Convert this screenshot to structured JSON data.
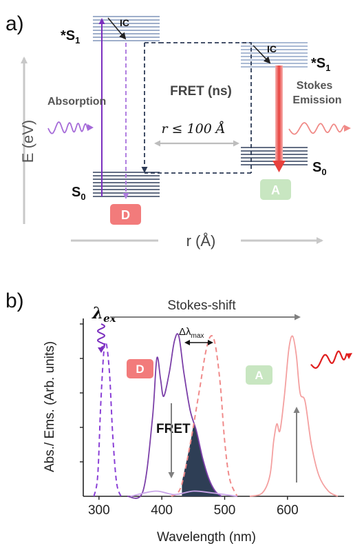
{
  "panel_a": {
    "label": "a)",
    "y_axis": "E (eV)",
    "x_axis": "r (Å)",
    "left_s1": "*S",
    "left_s1_sub": "1",
    "left_s0": "S",
    "left_s0_sub": "0",
    "right_s1": "*S",
    "right_s1_sub": "1",
    "right_s0": "S",
    "right_s0_sub": "0",
    "ic_left": "IC",
    "ic_right": "IC",
    "fret": "FRET (ns)",
    "distance": "r ≤ 100 Å",
    "absorption": "Absorption",
    "stokes_line1": "Stokes",
    "stokes_line2": "Emission",
    "donor": "D",
    "acceptor": "A",
    "colors": {
      "donor_badge": "#f27b7b",
      "acceptor_badge": "#c8e6c1",
      "absorption": "#8c4fc4",
      "emission": "#e9524f",
      "levels": "#3d4e6b"
    }
  },
  "panel_b": {
    "label": "b)",
    "lambda_ex": "λ",
    "lambda_ex_sub": "ex",
    "stokes_shift": "Stokes-shift",
    "delta_lambda": "Δλ",
    "delta_lambda_sub": "max",
    "donor": "D",
    "acceptor": "A",
    "fret": "FRET",
    "xlabel": "Wavelength  (nm)",
    "ylabel": "Abs./ Ems.  (Arb. units)"
  },
  "chart_data": {
    "type": "line",
    "xlabel": "Wavelength  (nm)",
    "ylabel": "Abs./ Ems.  (Arb. units)",
    "x_ticks": [
      300,
      400,
      500,
      600
    ],
    "xlim": [
      275,
      690
    ],
    "ylim": [
      0,
      1
    ],
    "y_ticks_labeled": false,
    "series": [
      {
        "style": "dashed",
        "color": "#8a3fd6",
        "points": [
          [
            292,
            0
          ],
          [
            298,
            0.12
          ],
          [
            303,
            0.55
          ],
          [
            308,
            0.85
          ],
          [
            312,
            0.88
          ],
          [
            317,
            0.7
          ],
          [
            322,
            0.35
          ],
          [
            328,
            0.08
          ],
          [
            335,
            0
          ]
        ]
      },
      {
        "style": "solid",
        "color": "#7b3fa8",
        "points": [
          [
            345,
            0
          ],
          [
            370,
            0.03
          ],
          [
            385,
            0.45
          ],
          [
            392,
            0.8
          ],
          [
            398,
            0.68
          ],
          [
            403,
            0.58
          ],
          [
            412,
            0.72
          ],
          [
            420,
            0.9
          ],
          [
            427,
            0.93
          ],
          [
            435,
            0.72
          ],
          [
            445,
            0.5
          ],
          [
            455,
            0.38
          ],
          [
            465,
            0.22
          ],
          [
            475,
            0.1
          ],
          [
            485,
            0.03
          ],
          [
            495,
            0
          ]
        ]
      },
      {
        "style": "dashed",
        "color": "#f08a8a",
        "points": [
          [
            415,
            0
          ],
          [
            430,
            0.05
          ],
          [
            445,
            0.3
          ],
          [
            460,
            0.62
          ],
          [
            470,
            0.84
          ],
          [
            478,
            0.93
          ],
          [
            485,
            0.88
          ],
          [
            493,
            0.65
          ],
          [
            500,
            0.32
          ],
          [
            508,
            0.1
          ],
          [
            520,
            0
          ]
        ]
      },
      {
        "style": "solid",
        "color": "#f4a0a0",
        "points": [
          [
            540,
            0
          ],
          [
            560,
            0.02
          ],
          [
            572,
            0.12
          ],
          [
            578,
            0.32
          ],
          [
            583,
            0.42
          ],
          [
            588,
            0.38
          ],
          [
            595,
            0.58
          ],
          [
            602,
            0.85
          ],
          [
            608,
            0.93
          ],
          [
            614,
            0.82
          ],
          [
            620,
            0.6
          ],
          [
            628,
            0.55
          ],
          [
            638,
            0.3
          ],
          [
            650,
            0.12
          ],
          [
            665,
            0.03
          ],
          [
            680,
            0
          ]
        ]
      },
      {
        "style": "solid",
        "color": "#c9a4e8",
        "points": [
          [
            350,
            0
          ],
          [
            390,
            0.03
          ],
          [
            420,
            0.01
          ],
          [
            450,
            0.03
          ],
          [
            480,
            0.02
          ],
          [
            520,
            0
          ]
        ]
      }
    ],
    "overlap_fill_color": "#2e3e55"
  }
}
